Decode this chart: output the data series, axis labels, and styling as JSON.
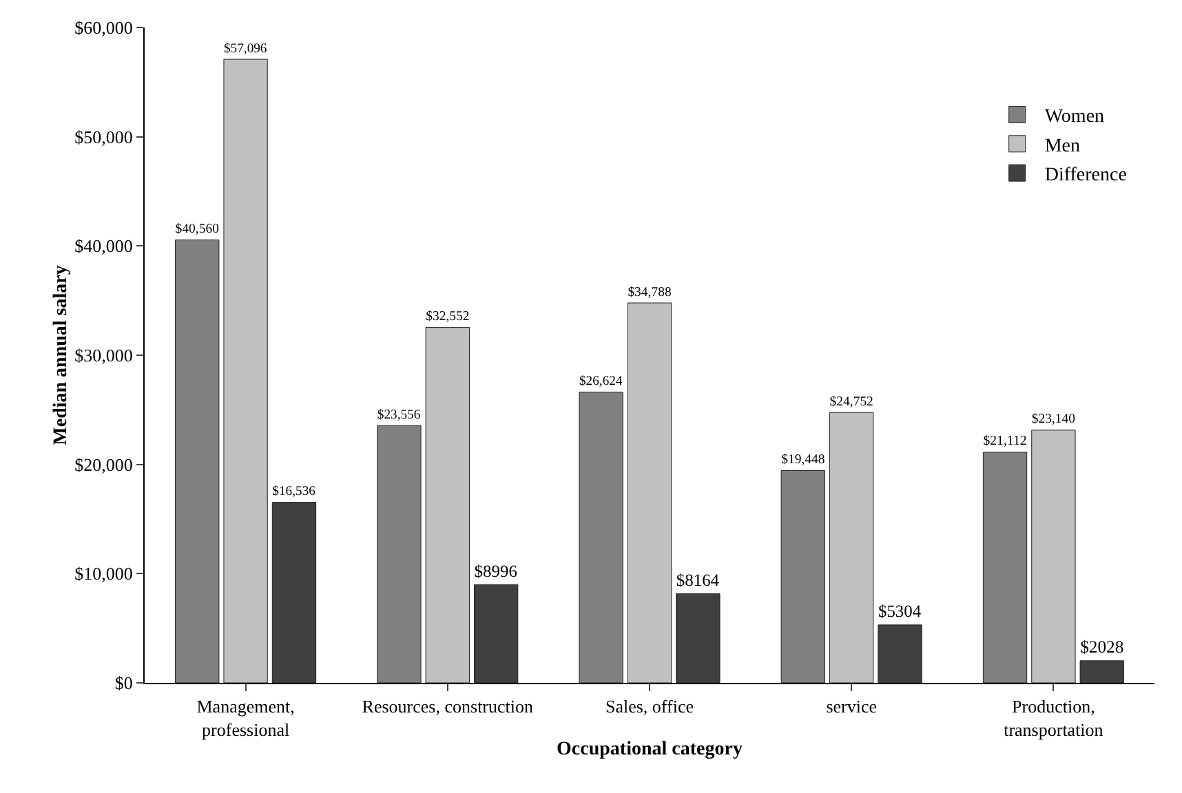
{
  "chart_data": {
    "type": "bar",
    "xlabel": "Occupational category",
    "ylabel": "Median annual salary",
    "categories": [
      "Management, professional",
      "Resources, construction",
      "Sales, office",
      "service",
      "Production, transportation"
    ],
    "series": [
      {
        "name": "Women",
        "color": "#808080",
        "values": [
          40560,
          23556,
          26624,
          19448,
          21112
        ],
        "value_labels": [
          "$40,560",
          "$23,556",
          "$26,624",
          "$19,448",
          "$21,112"
        ]
      },
      {
        "name": "Men",
        "color": "#c0c0c0",
        "values": [
          57096,
          32552,
          34788,
          24752,
          23140
        ],
        "value_labels": [
          "$57,096",
          "$32,552",
          "$34,788",
          "$24,752",
          "$23,140"
        ]
      },
      {
        "name": "Difference",
        "color": "#404040",
        "values": [
          16536,
          8996,
          8164,
          5304,
          2028
        ],
        "value_labels": [
          "$16,536",
          "$8996",
          "$8164",
          "$5304",
          "$2028"
        ]
      }
    ],
    "ylim": [
      0,
      60000
    ],
    "yticks": [
      {
        "value": 0,
        "label": "$0"
      },
      {
        "value": 10000,
        "label": "$10,000"
      },
      {
        "value": 20000,
        "label": "$20,000"
      },
      {
        "value": 30000,
        "label": "$30,000"
      },
      {
        "value": 40000,
        "label": "$40,000"
      },
      {
        "value": 50000,
        "label": "$50,000"
      },
      {
        "value": 60000,
        "label": "$60,000"
      }
    ],
    "grid": false,
    "legend": "top right"
  }
}
